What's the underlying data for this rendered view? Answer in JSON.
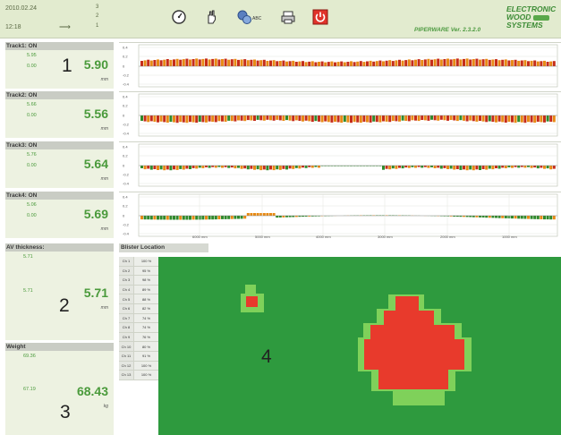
{
  "header": {
    "date": "2010.02.24",
    "time": "12:18",
    "counter_top": "3",
    "counter_mid": "2",
    "counter_bottom": "1",
    "arrow": "⟶",
    "version": "PIPERWARE Ver. 2.3.2.0",
    "brand_lines": [
      "ELECTRONIC",
      "WOOD",
      "SYSTEMS"
    ],
    "icons": [
      "gauge-icon",
      "hand-icon",
      "abc-settings-icon",
      "printer-icon",
      "power-icon"
    ]
  },
  "tracks": [
    {
      "title": "Track1: ON",
      "ref": "5.95",
      "offset": "0.00",
      "value": "5.90",
      "unit": "mm",
      "callout": "1"
    },
    {
      "title": "Track2: ON",
      "ref": "5.66",
      "offset": "0.00",
      "value": "5.56",
      "unit": "mm",
      "callout": ""
    },
    {
      "title": "Track3: ON",
      "ref": "5.76",
      "offset": "0.00",
      "value": "5.64",
      "unit": "mm",
      "callout": ""
    },
    {
      "title": "Track4: ON",
      "ref": "5.06",
      "offset": "0.00",
      "value": "5.69",
      "unit": "mm",
      "callout": ""
    }
  ],
  "thickness": {
    "title": "AV thickness:",
    "ref": "5.71",
    "value_small": "5.71",
    "value": "5.71",
    "unit": "mm",
    "callout": "2"
  },
  "weight": {
    "title": "Weight",
    "ref": "69.36",
    "value_small": "67.19",
    "value": "68.43",
    "unit": "kg",
    "callout": "3"
  },
  "chart_axis": {
    "y_ticks": [
      "0.4",
      "0.2",
      "0",
      "-0.2",
      "-0.4"
    ],
    "x_ticks": [
      "6000 mm",
      "5000 mm",
      "4000 mm",
      "3000 mm",
      "2000 mm",
      "1000 mm"
    ]
  },
  "blister": {
    "title": "Blister Location",
    "callout": "4",
    "rows": [
      {
        "ch": "Ch 1",
        "pct": "100 %"
      },
      {
        "ch": "Ch 2",
        "pct": "95 %"
      },
      {
        "ch": "Ch 3",
        "pct": "98 %"
      },
      {
        "ch": "Ch 4",
        "pct": "89 %"
      },
      {
        "ch": "Ch 5",
        "pct": "88 %"
      },
      {
        "ch": "Ch 6",
        "pct": "82 %"
      },
      {
        "ch": "Ch 7",
        "pct": "74 %"
      },
      {
        "ch": "Ch 8",
        "pct": "74 %"
      },
      {
        "ch": "Ch 9",
        "pct": "76 %"
      },
      {
        "ch": "Ch 10",
        "pct": "80 %"
      },
      {
        "ch": "Ch 11",
        "pct": "91 %"
      },
      {
        "ch": "Ch 12",
        "pct": "100 %"
      },
      {
        "ch": "Ch 13",
        "pct": "100 %"
      }
    ]
  },
  "colors": {
    "bar_red": "#c62c1a",
    "bar_orange": "#e88a14",
    "bar_green": "#2f8a2a",
    "map_bg": "#2e9a3e",
    "blister_red": "#e83a2c",
    "blister_light": "#7fd15a",
    "accent_green": "#4a9a3b"
  }
}
